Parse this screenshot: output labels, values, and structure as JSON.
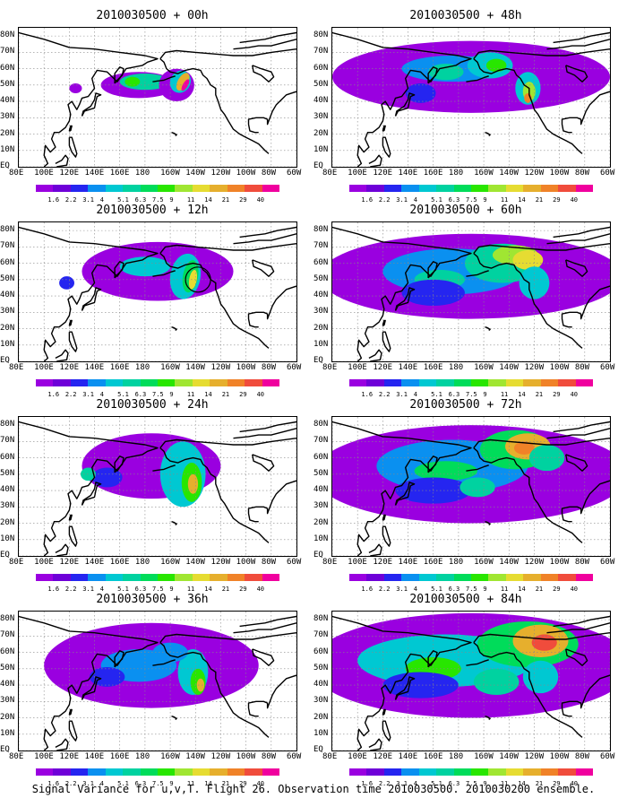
{
  "panels": [
    {
      "title": "2010030500 + 00h"
    },
    {
      "title": "2010030500 + 48h"
    },
    {
      "title": "2010030500 + 12h"
    },
    {
      "title": "2010030500 + 60h"
    },
    {
      "title": "2010030500 + 24h"
    },
    {
      "title": "2010030500 + 72h"
    },
    {
      "title": "2010030500 + 36h"
    },
    {
      "title": "2010030500 + 84h"
    }
  ],
  "lat_labels": [
    "80N",
    "70N",
    "60N",
    "50N",
    "40N",
    "30N",
    "20N",
    "10N",
    "EQ"
  ],
  "lon_labels": [
    "80E",
    "100E",
    "120E",
    "140E",
    "160E",
    "180",
    "160W",
    "140W",
    "120W",
    "100W",
    "80W",
    "60W"
  ],
  "colorbar": {
    "labels": [
      "1.6",
      "2.2",
      "3.1",
      "4",
      "5.1",
      "6.3",
      "7.5",
      "9",
      "11",
      "14",
      "21",
      "29",
      "40"
    ],
    "colors": [
      "#9a00e0",
      "#6e00d8",
      "#2525f0",
      "#0a90f0",
      "#00c8d2",
      "#00d2a0",
      "#00dc5a",
      "#28e600",
      "#a0e632",
      "#e6dc32",
      "#e6af2d",
      "#f08228",
      "#f04c3c",
      "#f0009e"
    ]
  },
  "footer": "Signal Variance for u,v,T. Flight 26. Observation time 2010030500. 2010030200 ensemble."
}
